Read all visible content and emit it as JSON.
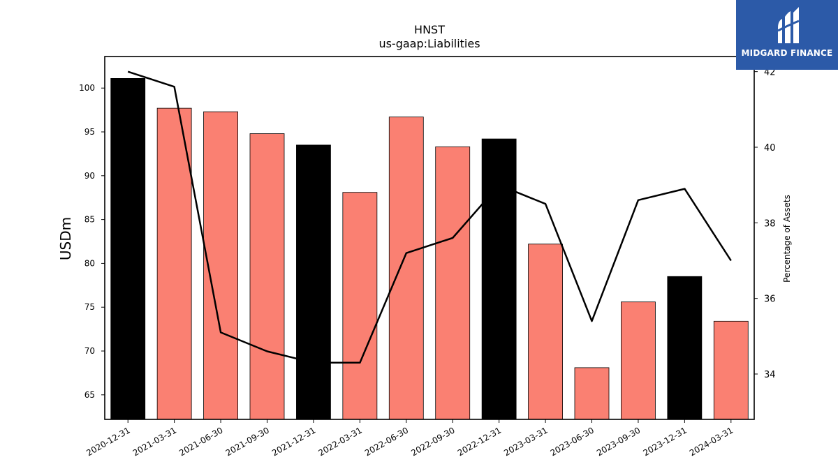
{
  "chart_data": {
    "type": "bar",
    "title": "HNST",
    "subtitle": "us-gaap:Liabilities",
    "ylabel": "USDm",
    "y2label": "Percentage of Assets",
    "categories": [
      "2020-12-31",
      "2021-03-31",
      "2021-06-30",
      "2021-09-30",
      "2021-12-31",
      "2022-03-31",
      "2022-06-30",
      "2022-09-30",
      "2022-12-31",
      "2023-03-31",
      "2023-06-30",
      "2023-09-30",
      "2023-12-31",
      "2024-03-31"
    ],
    "series": [
      {
        "values": [
          101.1,
          97.7,
          97.3,
          94.8,
          93.5,
          88.1,
          96.7,
          93.3,
          94.2,
          82.2,
          68.1,
          75.6,
          78.5,
          73.4
        ]
      },
      {
        "values": [
          42.0,
          41.6,
          35.1,
          34.6,
          34.3,
          34.3,
          37.2,
          37.6,
          39.0,
          38.5,
          35.4,
          38.6,
          38.9,
          37.0
        ]
      }
    ],
    "bar_colors": [
      "#000000",
      "#fa8072",
      "#fa8072",
      "#fa8072",
      "#000000",
      "#fa8072",
      "#fa8072",
      "#fa8072",
      "#000000",
      "#fa8072",
      "#fa8072",
      "#fa8072",
      "#000000",
      "#fa8072"
    ],
    "line_color": "#000000",
    "ylim": [
      62.2,
      103.6
    ],
    "y2lim": [
      32.8,
      42.4
    ],
    "yticks": [
      "65",
      "70",
      "75",
      "80",
      "85",
      "90",
      "95",
      "100"
    ],
    "y2ticks": [
      "34",
      "36",
      "38",
      "40",
      "42"
    ]
  },
  "logo": {
    "text": "MIDGARD FINANCE",
    "bg_color": "#2c5aa8"
  }
}
